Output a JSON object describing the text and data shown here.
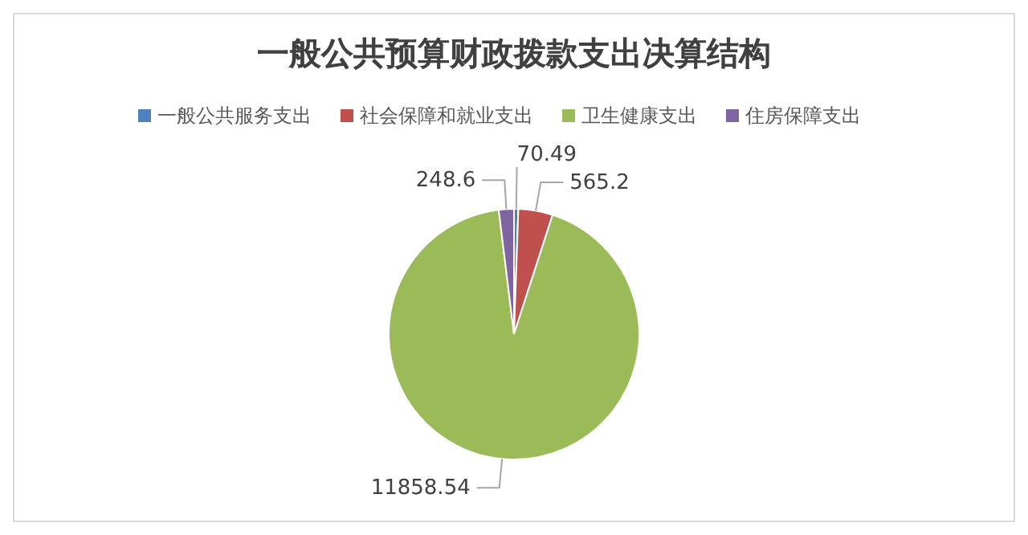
{
  "chart_data": {
    "type": "pie",
    "title": "一般公共预算财政拨款支出决算结构",
    "categories": [
      "一般公共服务支出",
      "社会保障和就业支出",
      "卫生健康支出",
      "住房保障支出"
    ],
    "values": [
      70.49,
      565.2,
      11858.54,
      248.6
    ],
    "colors": [
      "#4f81bd",
      "#c0504d",
      "#9bbb59",
      "#8064a2"
    ],
    "data_labels": true,
    "legend": "top"
  }
}
